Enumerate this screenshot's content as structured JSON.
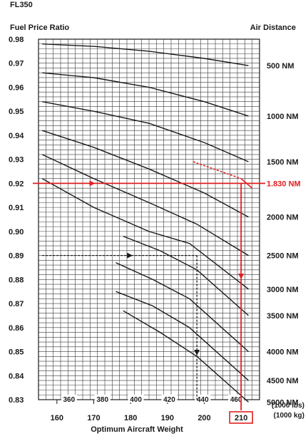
{
  "flight_level": "FL350",
  "chart_data": {
    "type": "line",
    "title": "FL350",
    "ylabel": "Fuel Price Ratio",
    "right_label": "Air Distance",
    "xlabel": "Optimum Aircraft Weight",
    "unit_lbs": "(1000 lbs)",
    "unit_kg": "(1000 kg)",
    "ylim": [
      0.83,
      0.98
    ],
    "xlim_kg": [
      155,
      215
    ],
    "grid": true,
    "y_ticks": [
      "0.98",
      "0.97",
      "0.96",
      "0.95",
      "0.94",
      "0.93",
      "0.92",
      "0.91",
      "0.90",
      "0.89",
      "0.88",
      "0.87",
      "0.86",
      "0.85",
      "0.84",
      "0.83"
    ],
    "x_ticks_kg": [
      "160",
      "170",
      "180",
      "190",
      "200",
      "210"
    ],
    "x_ticks_lbs": [
      "360",
      "380",
      "400",
      "420",
      "440",
      "460"
    ],
    "series": [
      {
        "name": "500 NM",
        "points": [
          [
            156,
            0.978
          ],
          [
            170,
            0.977
          ],
          [
            185,
            0.975
          ],
          [
            200,
            0.972
          ],
          [
            212,
            0.969
          ]
        ]
      },
      {
        "name": "1000 NM",
        "points": [
          [
            156,
            0.966
          ],
          [
            170,
            0.964
          ],
          [
            185,
            0.96
          ],
          [
            200,
            0.954
          ],
          [
            212,
            0.948
          ]
        ]
      },
      {
        "name": "1500 NM",
        "points": [
          [
            156,
            0.954
          ],
          [
            170,
            0.95
          ],
          [
            185,
            0.945
          ],
          [
            200,
            0.937
          ],
          [
            212,
            0.929
          ]
        ]
      },
      {
        "name": "2000 NM",
        "points": [
          [
            156,
            0.942
          ],
          [
            170,
            0.935
          ],
          [
            185,
            0.926
          ],
          [
            200,
            0.916
          ],
          [
            212,
            0.906
          ]
        ]
      },
      {
        "name": "2500 NM",
        "points": [
          [
            156,
            0.932
          ],
          [
            170,
            0.922
          ],
          [
            185,
            0.912
          ],
          [
            198,
            0.903
          ],
          [
            212,
            0.89
          ]
        ]
      },
      {
        "name": "3000 NM",
        "points": [
          [
            156,
            0.922
          ],
          [
            170,
            0.91
          ],
          [
            185,
            0.9
          ],
          [
            196,
            0.895
          ],
          [
            212,
            0.876
          ]
        ]
      },
      {
        "name": "3500 NM",
        "points": [
          [
            178,
            0.898
          ],
          [
            188,
            0.892
          ],
          [
            198,
            0.884
          ],
          [
            212,
            0.865
          ]
        ]
      },
      {
        "name": "4000 NM",
        "points": [
          [
            176,
            0.887
          ],
          [
            186,
            0.88
          ],
          [
            196,
            0.872
          ],
          [
            212,
            0.85
          ]
        ]
      },
      {
        "name": "4500 NM",
        "points": [
          [
            176,
            0.875
          ],
          [
            186,
            0.869
          ],
          [
            196,
            0.86
          ],
          [
            212,
            0.838
          ]
        ]
      },
      {
        "name": "5000 NM",
        "points": [
          [
            178,
            0.867
          ],
          [
            188,
            0.858
          ],
          [
            198,
            0.848
          ],
          [
            212,
            0.829
          ]
        ]
      }
    ],
    "example_line": {
      "name": "1.830 NM",
      "points": [
        [
          197,
          0.929
        ],
        [
          210,
          0.922
        ],
        [
          213,
          0.918
        ]
      ]
    },
    "example": {
      "fuel_price_ratio": 0.92,
      "result_weight_kg": "210"
    },
    "secondary_example": {
      "start_ratio": 0.89,
      "turn_weight_kg": 198
    }
  }
}
